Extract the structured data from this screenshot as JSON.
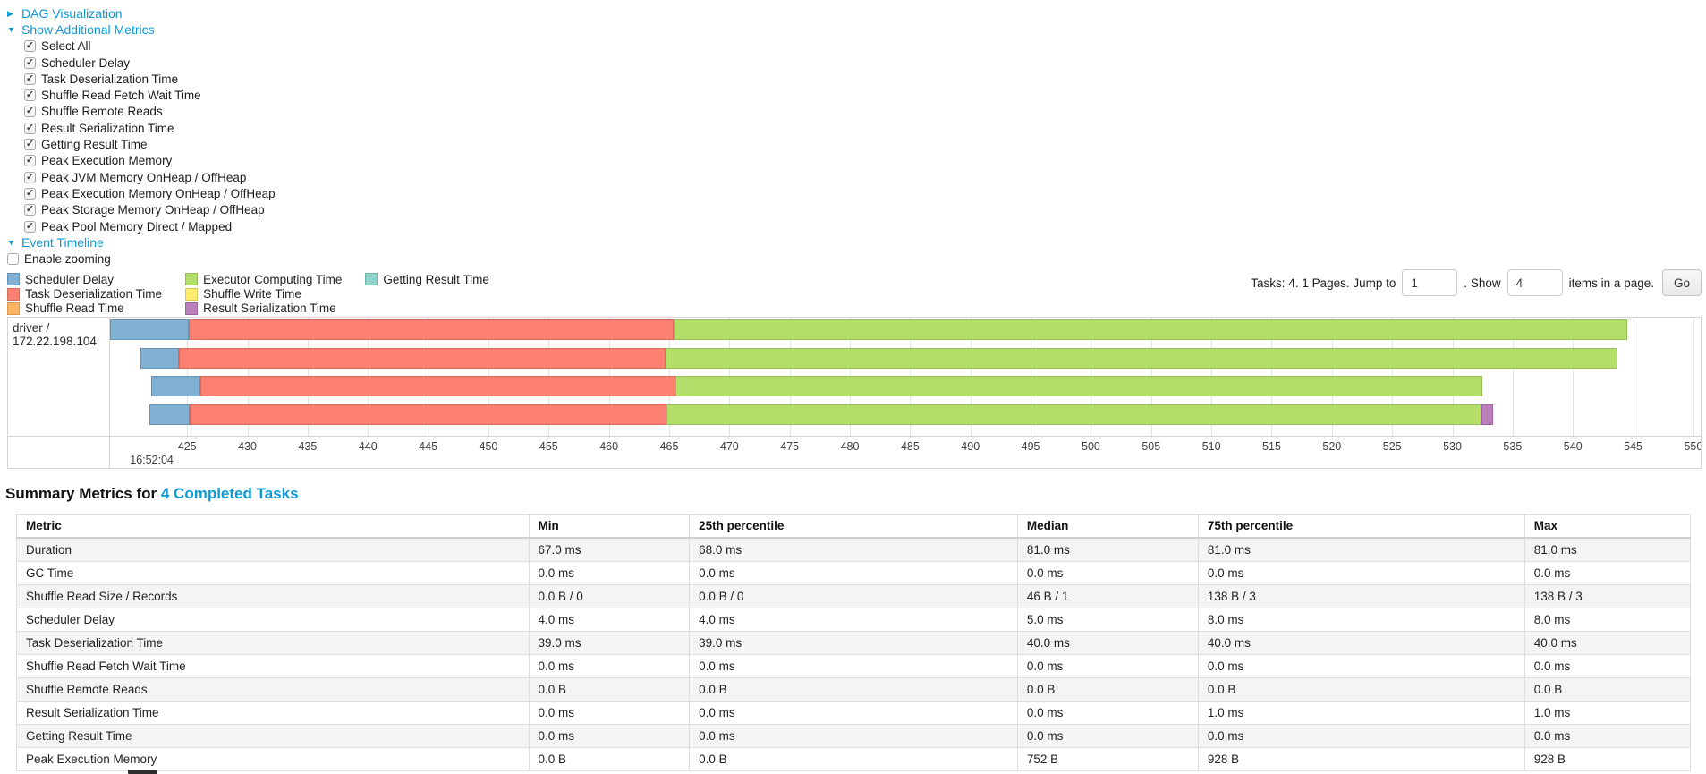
{
  "icons": {
    "collapsed": "▶",
    "expanded": "▼",
    "check": "✓"
  },
  "expanders": {
    "dag": "DAG Visualization",
    "metrics": "Show Additional Metrics",
    "timeline": "Event Timeline"
  },
  "metric_checkboxes": [
    "Select All",
    "Scheduler Delay",
    "Task Deserialization Time",
    "Shuffle Read Fetch Wait Time",
    "Shuffle Remote Reads",
    "Result Serialization Time",
    "Getting Result Time",
    "Peak Execution Memory",
    "Peak JVM Memory OnHeap / OffHeap",
    "Peak Execution Memory OnHeap / OffHeap",
    "Peak Storage Memory OnHeap / OffHeap",
    "Peak Pool Memory Direct / Mapped"
  ],
  "enable_zooming_label": "Enable zooming",
  "legend": {
    "items": [
      {
        "key": "scheduler_delay",
        "label": "Scheduler Delay"
      },
      {
        "key": "task_deserialization",
        "label": "Task Deserialization Time"
      },
      {
        "key": "shuffle_read",
        "label": "Shuffle Read Time"
      },
      {
        "key": "executor_computing",
        "label": "Executor Computing Time"
      },
      {
        "key": "shuffle_write",
        "label": "Shuffle Write Time"
      },
      {
        "key": "result_serialization",
        "label": "Result Serialization Time"
      },
      {
        "key": "getting_result",
        "label": "Getting Result Time"
      }
    ]
  },
  "pagination": {
    "prefix": "Tasks: 4. 1 Pages. Jump to",
    "jump_value": "1",
    "mid": ". Show",
    "show_value": "4",
    "suffix": "items in a page.",
    "go_label": "Go"
  },
  "chart_data": {
    "type": "timeline",
    "group_label": "driver / 172.22.198.104",
    "axis": {
      "start_label": "16:52:04",
      "tick_start": 425,
      "tick_end": 550,
      "tick_step": 5,
      "min": 418.6,
      "max": 550.6,
      "unit": "ms"
    },
    "colors": {
      "scheduler_delay": "#80B1D3",
      "task_deserialization": "#FB8072",
      "shuffle_read": "#FDB462",
      "executor_computing": "#B3DE69",
      "shuffle_write": "#FFED6F",
      "result_serialization": "#BC80BD",
      "getting_result": "#8DD3C7"
    },
    "borders": {
      "scheduler_delay": "#6693b5",
      "task_deserialization": "#d96a5e",
      "shuffle_read": "#d99a4e",
      "executor_computing": "#94bd52",
      "shuffle_write": "#d8c75a",
      "result_serialization": "#9e62a0",
      "getting_result": "#6fb3a7"
    },
    "bars": [
      {
        "segments": [
          {
            "name": "scheduler_delay",
            "start": 418.6,
            "end": 425.1
          },
          {
            "name": "task_deserialization",
            "start": 425.1,
            "end": 465.4
          },
          {
            "name": "executor_computing",
            "start": 465.4,
            "end": 544.5
          }
        ]
      },
      {
        "segments": [
          {
            "name": "scheduler_delay",
            "start": 421.1,
            "end": 424.3
          },
          {
            "name": "task_deserialization",
            "start": 424.3,
            "end": 464.7
          },
          {
            "name": "executor_computing",
            "start": 464.7,
            "end": 543.7
          }
        ]
      },
      {
        "segments": [
          {
            "name": "scheduler_delay",
            "start": 422.0,
            "end": 426.1
          },
          {
            "name": "task_deserialization",
            "start": 426.1,
            "end": 465.5
          },
          {
            "name": "executor_computing",
            "start": 465.5,
            "end": 532.5
          }
        ]
      },
      {
        "segments": [
          {
            "name": "scheduler_delay",
            "start": 421.9,
            "end": 425.2
          },
          {
            "name": "task_deserialization",
            "start": 425.2,
            "end": 464.8
          },
          {
            "name": "executor_computing",
            "start": 464.8,
            "end": 532.4
          },
          {
            "name": "result_serialization",
            "start": 532.4,
            "end": 533.4
          }
        ]
      }
    ]
  },
  "summary": {
    "title_prefix": "Summary Metrics for",
    "title_link": "4 Completed Tasks",
    "table": {
      "col_widths": [
        "30.6%",
        "9.6%",
        "19.6%",
        "10.8%",
        "19.5%",
        "9.9%"
      ],
      "headers": [
        "Metric",
        "Min",
        "25th percentile",
        "Median",
        "75th percentile",
        "Max"
      ],
      "rows": [
        [
          "Duration",
          "67.0 ms",
          "68.0 ms",
          "81.0 ms",
          "81.0 ms",
          "81.0 ms"
        ],
        [
          "GC Time",
          "0.0 ms",
          "0.0 ms",
          "0.0 ms",
          "0.0 ms",
          "0.0 ms"
        ],
        [
          "Shuffle Read Size / Records",
          "0.0 B / 0",
          "0.0 B / 0",
          "46 B / 1",
          "138 B / 3",
          "138 B / 3"
        ],
        [
          "Scheduler Delay",
          "4.0 ms",
          "4.0 ms",
          "5.0 ms",
          "8.0 ms",
          "8.0 ms"
        ],
        [
          "Task Deserialization Time",
          "39.0 ms",
          "39.0 ms",
          "40.0 ms",
          "40.0 ms",
          "40.0 ms"
        ],
        [
          "Shuffle Read Fetch Wait Time",
          "0.0 ms",
          "0.0 ms",
          "0.0 ms",
          "0.0 ms",
          "0.0 ms"
        ],
        [
          "Shuffle Remote Reads",
          "0.0 B",
          "0.0 B",
          "0.0 B",
          "0.0 B",
          "0.0 B"
        ],
        [
          "Result Serialization Time",
          "0.0 ms",
          "0.0 ms",
          "0.0 ms",
          "1.0 ms",
          "1.0 ms"
        ],
        [
          "Getting Result Time",
          "0.0 ms",
          "0.0 ms",
          "0.0 ms",
          "0.0 ms",
          "0.0 ms"
        ],
        [
          "Peak Execution Memory",
          "0.0 B",
          "0.0 B",
          "752 B",
          "928 B",
          "928 B"
        ]
      ]
    }
  }
}
